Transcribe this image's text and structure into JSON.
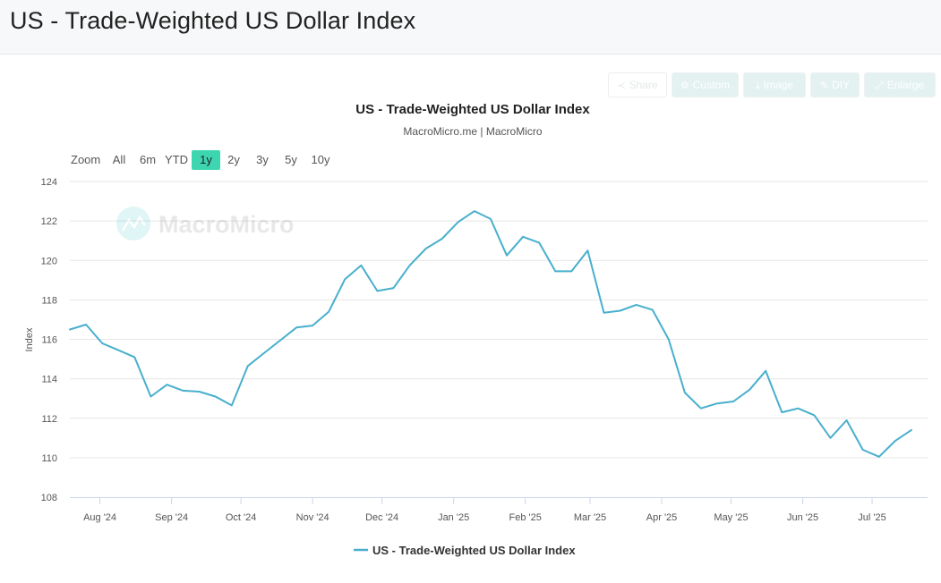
{
  "page": {
    "title": "US - Trade-Weighted US Dollar Index"
  },
  "toolbar": {
    "share": "Share",
    "custom": "Custom",
    "image": "Image",
    "diy": "DIY",
    "enlarge": "Enlarge"
  },
  "zoom": {
    "label": "Zoom",
    "options": [
      "All",
      "6m",
      "YTD",
      "1y",
      "2y",
      "3y",
      "5y",
      "10y"
    ],
    "selected": "1y"
  },
  "watermark": "MacroMicro",
  "colors": {
    "line": "#48afcd",
    "accent": "#3dd6b0",
    "grid": "#e6e6e6"
  },
  "chart_data": {
    "type": "line",
    "title": "US - Trade-Weighted US Dollar Index",
    "subtitle": "MacroMicro.me | MacroMicro",
    "xlabel": "",
    "ylabel": "Index",
    "ylim": [
      108,
      124
    ],
    "yticks": [
      108,
      110,
      112,
      114,
      116,
      118,
      120,
      122,
      124
    ],
    "xlim": [
      "2024-07-19",
      "2025-07-25"
    ],
    "xticks": [
      {
        "date": "2024-08-01",
        "label": "Aug '24"
      },
      {
        "date": "2024-09-01",
        "label": "Sep '24"
      },
      {
        "date": "2024-10-01",
        "label": "Oct '24"
      },
      {
        "date": "2024-11-01",
        "label": "Nov '24"
      },
      {
        "date": "2024-12-01",
        "label": "Dec '24"
      },
      {
        "date": "2025-01-01",
        "label": "Jan '25"
      },
      {
        "date": "2025-02-01",
        "label": "Feb '25"
      },
      {
        "date": "2025-03-01",
        "label": "Mar '25"
      },
      {
        "date": "2025-04-01",
        "label": "Apr '25"
      },
      {
        "date": "2025-05-01",
        "label": "May '25"
      },
      {
        "date": "2025-06-01",
        "label": "Jun '25"
      },
      {
        "date": "2025-07-01",
        "label": "Jul '25"
      }
    ],
    "grid": true,
    "legend": "bottom-center",
    "series": [
      {
        "name": "US - Trade-Weighted US Dollar Index",
        "points": [
          [
            "2024-07-19",
            116.5
          ],
          [
            "2024-07-26",
            116.75
          ],
          [
            "2024-08-02",
            115.8
          ],
          [
            "2024-08-09",
            115.45
          ],
          [
            "2024-08-16",
            115.1
          ],
          [
            "2024-08-23",
            113.1
          ],
          [
            "2024-08-30",
            113.7
          ],
          [
            "2024-09-06",
            113.4
          ],
          [
            "2024-09-13",
            113.35
          ],
          [
            "2024-09-20",
            113.1
          ],
          [
            "2024-09-27",
            112.65
          ],
          [
            "2024-10-04",
            114.65
          ],
          [
            "2024-10-11",
            115.3
          ],
          [
            "2024-10-18",
            115.95
          ],
          [
            "2024-10-25",
            116.6
          ],
          [
            "2024-11-01",
            116.7
          ],
          [
            "2024-11-08",
            117.4
          ],
          [
            "2024-11-15",
            119.05
          ],
          [
            "2024-11-22",
            119.75
          ],
          [
            "2024-11-29",
            118.45
          ],
          [
            "2024-12-06",
            118.6
          ],
          [
            "2024-12-13",
            119.75
          ],
          [
            "2024-12-20",
            120.6
          ],
          [
            "2024-12-27",
            121.1
          ],
          [
            "2025-01-03",
            121.95
          ],
          [
            "2025-01-10",
            122.5
          ],
          [
            "2025-01-17",
            122.1
          ],
          [
            "2025-01-24",
            120.25
          ],
          [
            "2025-01-31",
            121.2
          ],
          [
            "2025-02-07",
            120.9
          ],
          [
            "2025-02-14",
            119.45
          ],
          [
            "2025-02-21",
            119.45
          ],
          [
            "2025-02-28",
            120.5
          ],
          [
            "2025-03-07",
            117.35
          ],
          [
            "2025-03-14",
            117.45
          ],
          [
            "2025-03-21",
            117.75
          ],
          [
            "2025-03-28",
            117.5
          ],
          [
            "2025-04-04",
            116.0
          ],
          [
            "2025-04-11",
            113.3
          ],
          [
            "2025-04-18",
            112.5
          ],
          [
            "2025-04-25",
            112.75
          ],
          [
            "2025-05-02",
            112.85
          ],
          [
            "2025-05-09",
            113.45
          ],
          [
            "2025-05-16",
            114.4
          ],
          [
            "2025-05-23",
            112.3
          ],
          [
            "2025-05-30",
            112.5
          ],
          [
            "2025-06-06",
            112.15
          ],
          [
            "2025-06-13",
            111.0
          ],
          [
            "2025-06-20",
            111.9
          ],
          [
            "2025-06-27",
            110.4
          ],
          [
            "2025-07-04",
            110.05
          ],
          [
            "2025-07-11",
            110.85
          ],
          [
            "2025-07-18",
            111.4
          ]
        ]
      }
    ]
  }
}
